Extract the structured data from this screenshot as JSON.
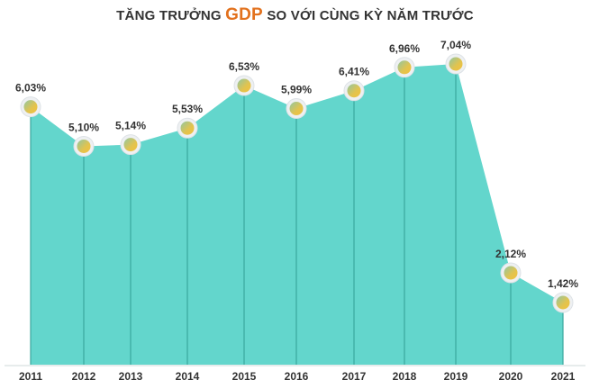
{
  "chart_data": {
    "type": "area",
    "title_parts": [
      "TĂNG TRƯỞNG",
      "GDP",
      "SO VỚI CÙNG KỲ NĂM TRƯỚC"
    ],
    "categories": [
      "2011",
      "2012",
      "2013",
      "2014",
      "2015",
      "2016",
      "2017",
      "2018",
      "2019",
      "2020",
      "2021"
    ],
    "values": [
      6.03,
      5.1,
      5.14,
      5.53,
      6.53,
      5.99,
      6.41,
      6.96,
      7.04,
      2.12,
      1.42
    ],
    "labels": [
      "6,03%",
      "5,10%",
      "5,14%",
      "5,53%",
      "6,53%",
      "5,99%",
      "6,41%",
      "6,96%",
      "7,04%",
      "2,12%",
      "1,42%"
    ],
    "xlabel": "",
    "ylabel": "",
    "ylim": [
      -0.6,
      7.04
    ],
    "grid": false,
    "colors": {
      "fill": "#63d6cc",
      "line": "#3aa79d",
      "title_accent": "#e2711d",
      "marker": "#d9c25a"
    }
  }
}
